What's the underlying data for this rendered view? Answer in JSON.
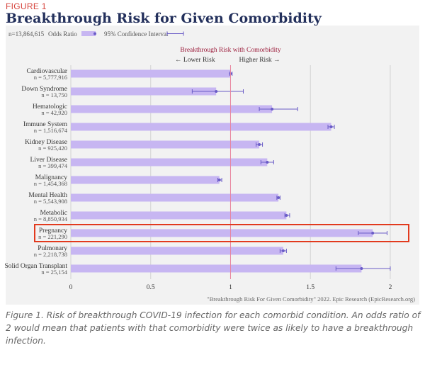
{
  "figure_label": "FIGURE 1",
  "title": "Breakthrough Risk for Given Comorbidity",
  "caption": "Figure 1. Risk of breakthrough COVID-19 infection for each comorbid condition. An odds ratio of 2 would mean that patients with that comorbidity were twice as likely to have a breakthrough infection.",
  "colors": {
    "bar": "#c7b6f2",
    "ci": "#6a5cc7",
    "reference_line": "#e8849e",
    "highlight": "#e23a1e",
    "title": "#23305c"
  },
  "chart_data": {
    "type": "bar",
    "orientation": "horizontal",
    "n_total": "n=13,864,615",
    "legend": {
      "odds_ratio": "Odds Ratio",
      "ci": "95% Confidence Interval",
      "placement": "top-left"
    },
    "reference": {
      "value": 1,
      "label": "Breakthrough Risk with Comorbidity",
      "lower": "← Lower Risk",
      "higher": "Higher Risk →"
    },
    "xlim": [
      0,
      2.1
    ],
    "x_ticks": [
      "0",
      "0.5",
      "1",
      "1.5",
      "2"
    ],
    "x_tick_values": [
      0,
      0.5,
      1,
      1.5,
      2
    ],
    "grid": true,
    "source": "\"Breakthrough Risk For Given Comorbidity\" 2022. Epic Research (EpicResearch.org)",
    "highlighted": "Pregnancy",
    "categories": [
      {
        "name": "Cardiovascular",
        "n": "n = 5,777,916",
        "value": 1.0,
        "ci": [
          0.995,
          1.01
        ]
      },
      {
        "name": "Down Syndrome",
        "n": "n = 13,750",
        "value": 0.91,
        "ci": [
          0.76,
          1.08
        ]
      },
      {
        "name": "Hematologic",
        "n": "n = 42,920",
        "value": 1.26,
        "ci": [
          1.18,
          1.42
        ]
      },
      {
        "name": "Immune System",
        "n": "n = 1,516,674",
        "value": 1.63,
        "ci": [
          1.61,
          1.65
        ]
      },
      {
        "name": "Kidney Disease",
        "n": "n = 925,420",
        "value": 1.18,
        "ci": [
          1.16,
          1.2
        ]
      },
      {
        "name": "Liver Disease",
        "n": "n = 399,474",
        "value": 1.23,
        "ci": [
          1.19,
          1.27
        ]
      },
      {
        "name": "Malignancy",
        "n": "n = 1,454,368",
        "value": 0.93,
        "ci": [
          0.92,
          0.945
        ]
      },
      {
        "name": "Mental Health",
        "n": "n = 5,543,908",
        "value": 1.3,
        "ci": [
          1.29,
          1.31
        ]
      },
      {
        "name": "Metabolic",
        "n": "n = 8,850,934",
        "value": 1.35,
        "ci": [
          1.34,
          1.37
        ]
      },
      {
        "name": "Pregnancy",
        "n": "n = 221,290",
        "value": 1.89,
        "ci": [
          1.8,
          1.98
        ]
      },
      {
        "name": "Pulmonary",
        "n": "n = 2,218,738",
        "value": 1.33,
        "ci": [
          1.31,
          1.35
        ]
      },
      {
        "name": "Solid Organ Transplant",
        "n": "n = 25,154",
        "value": 1.82,
        "ci": [
          1.66,
          2.0
        ]
      }
    ]
  }
}
